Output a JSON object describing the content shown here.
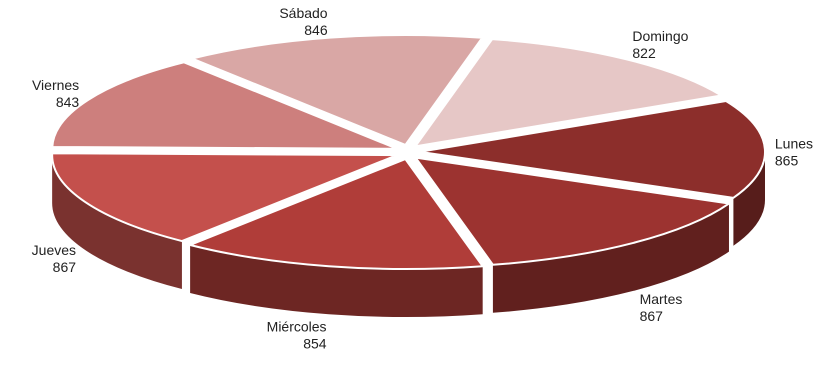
{
  "chart_data": {
    "type": "pie",
    "style": "3d-exploded",
    "categories": [
      "Lunes",
      "Martes",
      "Miércoles",
      "Jueves",
      "Viernes",
      "Sábado",
      "Domingo"
    ],
    "values": [
      865,
      867,
      854,
      867,
      843,
      846,
      822
    ],
    "value_labels": [
      "865",
      "867",
      "854",
      "867",
      "843",
      "846",
      "822"
    ],
    "colors": [
      "#8c2e2b",
      "#9c3330",
      "#b03d39",
      "#c4504c",
      "#cd7f7d",
      "#d9a7a5",
      "#e6c7c6"
    ],
    "legend": "none",
    "title": ""
  }
}
